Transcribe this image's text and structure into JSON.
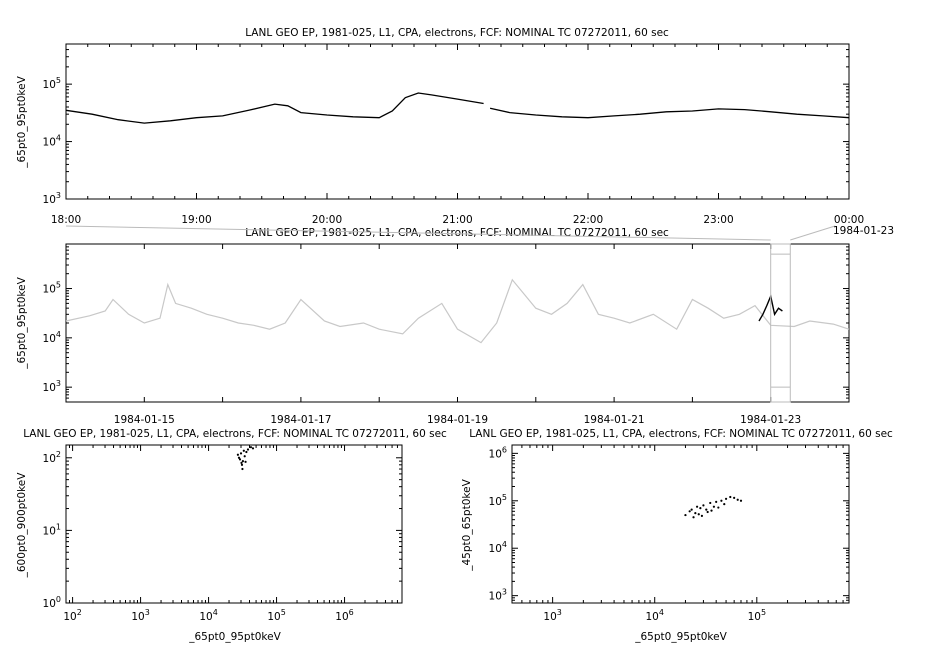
{
  "chart_data": [
    {
      "type": "line",
      "title": "LANL GEO EP, 1981-025, L1, CPA, electrons, FCF: NOMINAL TC 07272011, 60 sec",
      "ylabel": "_65pt0_95pt0keV",
      "xlabel": "",
      "x_tick_labels": [
        "18:00",
        "19:00",
        "20:00",
        "21:00",
        "22:00",
        "23:00",
        "00:00"
      ],
      "y_scale": "log",
      "ylim": [
        1000,
        500000
      ],
      "xlim_hours": [
        18,
        24
      ],
      "color": "#000000",
      "series": [
        {
          "x_hours": [
            18.0,
            18.2,
            18.4,
            18.6,
            18.8,
            19.0,
            19.2,
            19.4,
            19.6,
            19.7,
            19.8,
            20.0,
            20.2,
            20.4,
            20.5,
            20.6,
            20.7,
            20.8,
            21.0,
            21.2
          ],
          "values": [
            35000,
            30000,
            24000,
            21000,
            23000,
            26000,
            28000,
            35000,
            45000,
            42000,
            32000,
            29000,
            27000,
            26000,
            34000,
            58000,
            70000,
            65000,
            55000,
            46000
          ]
        },
        {
          "x_hours": [
            21.25,
            21.4,
            21.6,
            21.8,
            22.0,
            22.2,
            22.4,
            22.6,
            22.8,
            23.0,
            23.2,
            23.4,
            23.6,
            23.8,
            24.0
          ],
          "values": [
            38000,
            32000,
            29000,
            27000,
            26000,
            28000,
            30000,
            33000,
            34000,
            37000,
            36000,
            33000,
            30000,
            28000,
            26000
          ]
        }
      ]
    },
    {
      "type": "line",
      "title": "LANL GEO EP, 1981-025, L1, CPA, electrons, FCF: NOMINAL TC 07272011, 60 sec",
      "ylabel": "_65pt0_95pt0keV",
      "xlabel": "",
      "x_tick_labels": [
        "1984-01-15",
        "1984-01-17",
        "1984-01-19",
        "1984-01-21",
        "1984-01-23"
      ],
      "y_scale": "log",
      "ylim": [
        500,
        800000
      ],
      "xlim_days": [
        "1984-01-14",
        "1984-01-24"
      ],
      "series_color": "#c8c8c8",
      "highlight_color": "#000000",
      "highlight_range_label": "1984-01-23",
      "series": {
        "x_days": [
          14.0,
          14.3,
          14.5,
          14.6,
          14.8,
          15.0,
          15.2,
          15.3,
          15.4,
          15.6,
          15.8,
          16.0,
          16.2,
          16.4,
          16.6,
          16.8,
          17.0,
          17.3,
          17.5,
          17.8,
          18.0,
          18.3,
          18.5,
          18.8,
          19.0,
          19.3,
          19.5,
          19.7,
          20.0,
          20.2,
          20.4,
          20.6,
          20.8,
          21.0,
          21.2,
          21.5,
          21.8,
          22.0,
          22.2,
          22.4,
          22.6,
          22.8,
          23.0,
          23.3,
          23.5,
          23.8,
          24.0
        ],
        "values": [
          22000,
          28000,
          35000,
          60000,
          30000,
          20000,
          25000,
          120000,
          50000,
          40000,
          30000,
          25000,
          20000,
          18000,
          15000,
          20000,
          60000,
          22000,
          17000,
          20000,
          15000,
          12000,
          25000,
          50000,
          15000,
          8000,
          20000,
          150000,
          40000,
          30000,
          50000,
          120000,
          30000,
          25000,
          20000,
          30000,
          15000,
          60000,
          40000,
          25000,
          30000,
          45000,
          18000,
          17000,
          22000,
          19000,
          15000
        ]
      },
      "highlight": {
        "x_days": [
          22.85,
          22.9,
          22.95,
          23.0,
          23.05,
          23.1,
          23.15
        ],
        "values": [
          22000,
          30000,
          45000,
          70000,
          30000,
          40000,
          35000
        ]
      }
    },
    {
      "type": "scatter",
      "title": "LANL GEO EP, 1981-025, L1, CPA, electrons, FCF: NOMINAL TC 07272011, 60 sec",
      "xlabel": "_65pt0_95pt0keV",
      "ylabel": "_600pt0_900pt0keV",
      "x_scale": "log",
      "y_scale": "log",
      "xlim": [
        80,
        7000000
      ],
      "ylim": [
        1,
        150
      ],
      "points": [
        {
          "x": 28000,
          "y": 100
        },
        {
          "x": 30000,
          "y": 115
        },
        {
          "x": 32000,
          "y": 90
        },
        {
          "x": 34000,
          "y": 105
        },
        {
          "x": 36000,
          "y": 120
        },
        {
          "x": 31000,
          "y": 80
        },
        {
          "x": 29000,
          "y": 95
        },
        {
          "x": 35000,
          "y": 88
        },
        {
          "x": 38000,
          "y": 130
        },
        {
          "x": 42000,
          "y": 140
        },
        {
          "x": 33000,
          "y": 125
        },
        {
          "x": 27000,
          "y": 110
        },
        {
          "x": 45000,
          "y": 135
        },
        {
          "x": 31500,
          "y": 70
        },
        {
          "x": 30500,
          "y": 85
        }
      ]
    },
    {
      "type": "scatter",
      "title": "LANL GEO EP, 1981-025, L1, CPA, electrons, FCF: NOMINAL TC 07272011, 60 sec",
      "xlabel": "_65pt0_95pt0keV",
      "ylabel": "_45pt0_65pt0keV",
      "x_scale": "log",
      "y_scale": "log",
      "xlim": [
        400,
        800000
      ],
      "ylim": [
        700,
        1500000
      ],
      "points": [
        {
          "x": 20000,
          "y": 50000
        },
        {
          "x": 22000,
          "y": 60000
        },
        {
          "x": 25000,
          "y": 55000
        },
        {
          "x": 28000,
          "y": 70000
        },
        {
          "x": 30000,
          "y": 80000
        },
        {
          "x": 32000,
          "y": 65000
        },
        {
          "x": 35000,
          "y": 90000
        },
        {
          "x": 38000,
          "y": 75000
        },
        {
          "x": 40000,
          "y": 95000
        },
        {
          "x": 45000,
          "y": 100000
        },
        {
          "x": 50000,
          "y": 110000
        },
        {
          "x": 55000,
          "y": 120000
        },
        {
          "x": 60000,
          "y": 115000
        },
        {
          "x": 65000,
          "y": 105000
        },
        {
          "x": 70000,
          "y": 100000
        },
        {
          "x": 24000,
          "y": 45000
        },
        {
          "x": 27000,
          "y": 52000
        },
        {
          "x": 33000,
          "y": 58000
        },
        {
          "x": 36000,
          "y": 62000
        },
        {
          "x": 42000,
          "y": 72000
        },
        {
          "x": 48000,
          "y": 85000
        },
        {
          "x": 26000,
          "y": 75000
        },
        {
          "x": 29000,
          "y": 48000
        },
        {
          "x": 23000,
          "y": 65000
        }
      ]
    }
  ]
}
